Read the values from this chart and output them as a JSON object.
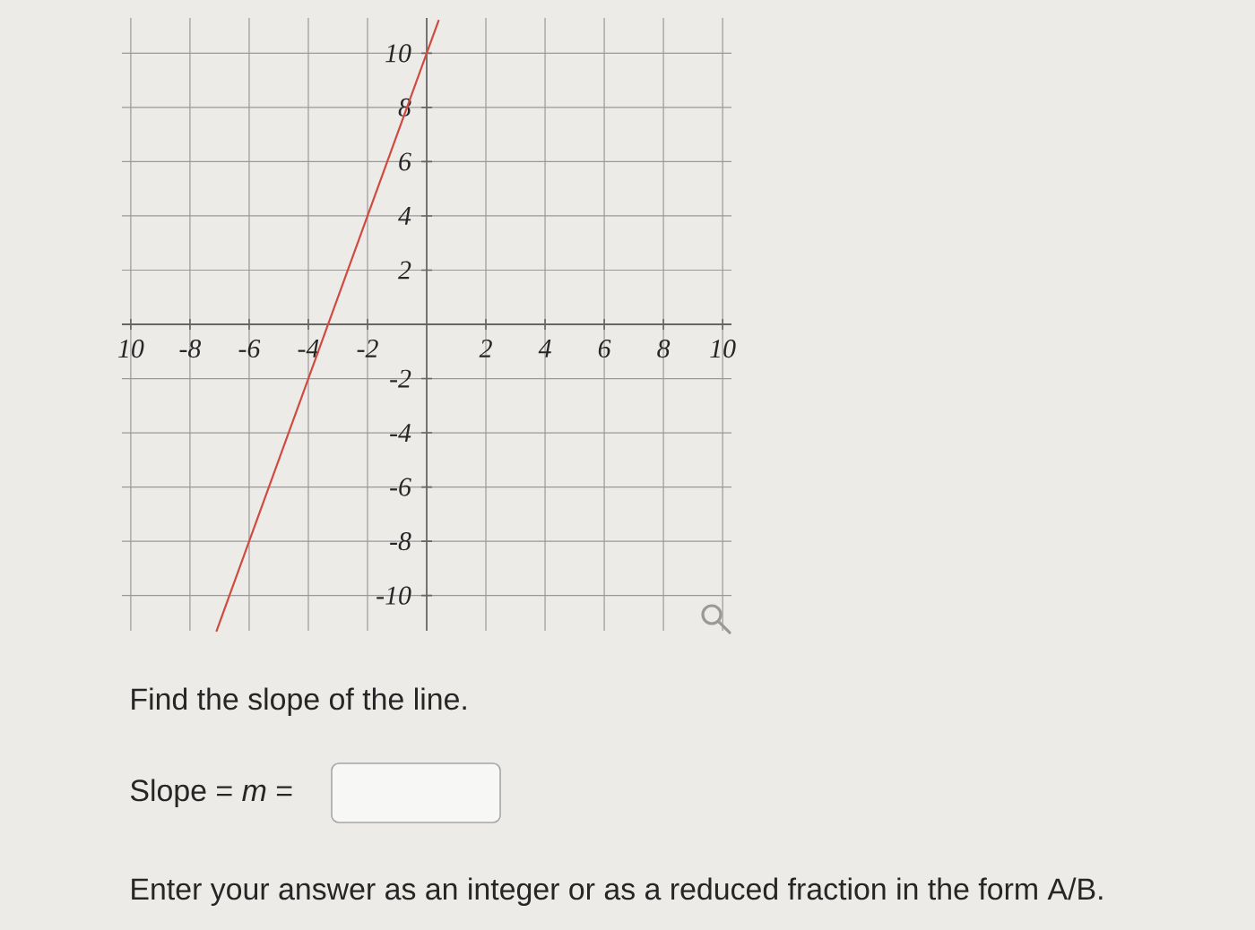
{
  "chart_data": {
    "type": "line",
    "series": [
      {
        "color": "#d04a40",
        "x": [
          -7.1,
          -6,
          -4,
          0,
          0.4
        ],
        "values": [
          -11.3,
          -8,
          -2,
          10,
          11.2
        ]
      }
    ],
    "xlim": [
      -10.3,
      10.3
    ],
    "ylim": [
      -11.3,
      11.3
    ],
    "xticks": [
      {
        "value": -10,
        "label": "10"
      },
      -8,
      -6,
      -4,
      -2,
      2,
      4,
      6,
      8,
      10
    ],
    "yticks": [
      -10,
      -8,
      -6,
      -4,
      -2,
      2,
      4,
      6,
      8,
      10
    ],
    "grid": true,
    "annotations": [
      "Find the slope of the line.",
      "Slope = *m* =",
      "Enter your answer as an integer or as a reduced fraction in the form A/B."
    ]
  }
}
